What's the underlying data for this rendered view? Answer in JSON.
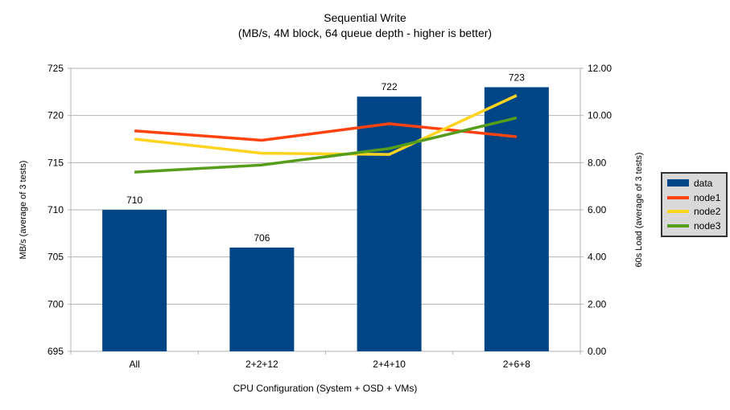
{
  "chart": {
    "title": "Sequential Write",
    "subtitle": "(MB/s, 4M block, 64 queue depth - higher is better)"
  },
  "chart_data": {
    "type": "bar",
    "subtype": "combo-bar-line-dual-axis",
    "categories": [
      "All",
      "2+2+12",
      "2+4+10",
      "2+6+8"
    ],
    "bar_series": {
      "name": "data",
      "axis": "left",
      "color": "#004586",
      "values": [
        710,
        706,
        722,
        723
      ],
      "data_labels": [
        "710",
        "706",
        "722",
        "723"
      ]
    },
    "line_series": [
      {
        "name": "node1",
        "axis": "right",
        "color": "#FF420E",
        "values": [
          9.35,
          8.95,
          9.65,
          9.1
        ]
      },
      {
        "name": "node2",
        "axis": "right",
        "color": "#FFD320",
        "values": [
          9.0,
          8.4,
          8.35,
          10.85
        ]
      },
      {
        "name": "node3",
        "axis": "right",
        "color": "#579D1C",
        "values": [
          7.6,
          7.9,
          8.6,
          9.9
        ]
      }
    ],
    "left_axis": {
      "title": "MB/s (average of 3 tests)",
      "min": 695,
      "max": 725,
      "step": 5,
      "tick_labels": [
        "695",
        "700",
        "705",
        "710",
        "715",
        "720",
        "725"
      ]
    },
    "right_axis": {
      "title": "60s Load (average of 3 tests)",
      "min": 0,
      "max": 12,
      "step": 2,
      "tick_labels": [
        "0.00",
        "2.00",
        "4.00",
        "6.00",
        "8.00",
        "10.00",
        "12.00"
      ]
    },
    "x_axis": {
      "title": "CPU Configuration (System + OSD + VMs)"
    },
    "legend": {
      "position": "right",
      "entries": [
        "data",
        "node1",
        "node2",
        "node3"
      ]
    },
    "grid": "horizontal-only",
    "colors": {
      "grid": "#b3b3b3",
      "axis": "#b3b3b3",
      "text": "#000000",
      "legend_bg": "#d9d9d9",
      "legend_border": "#333333",
      "background": "#ffffff"
    }
  }
}
